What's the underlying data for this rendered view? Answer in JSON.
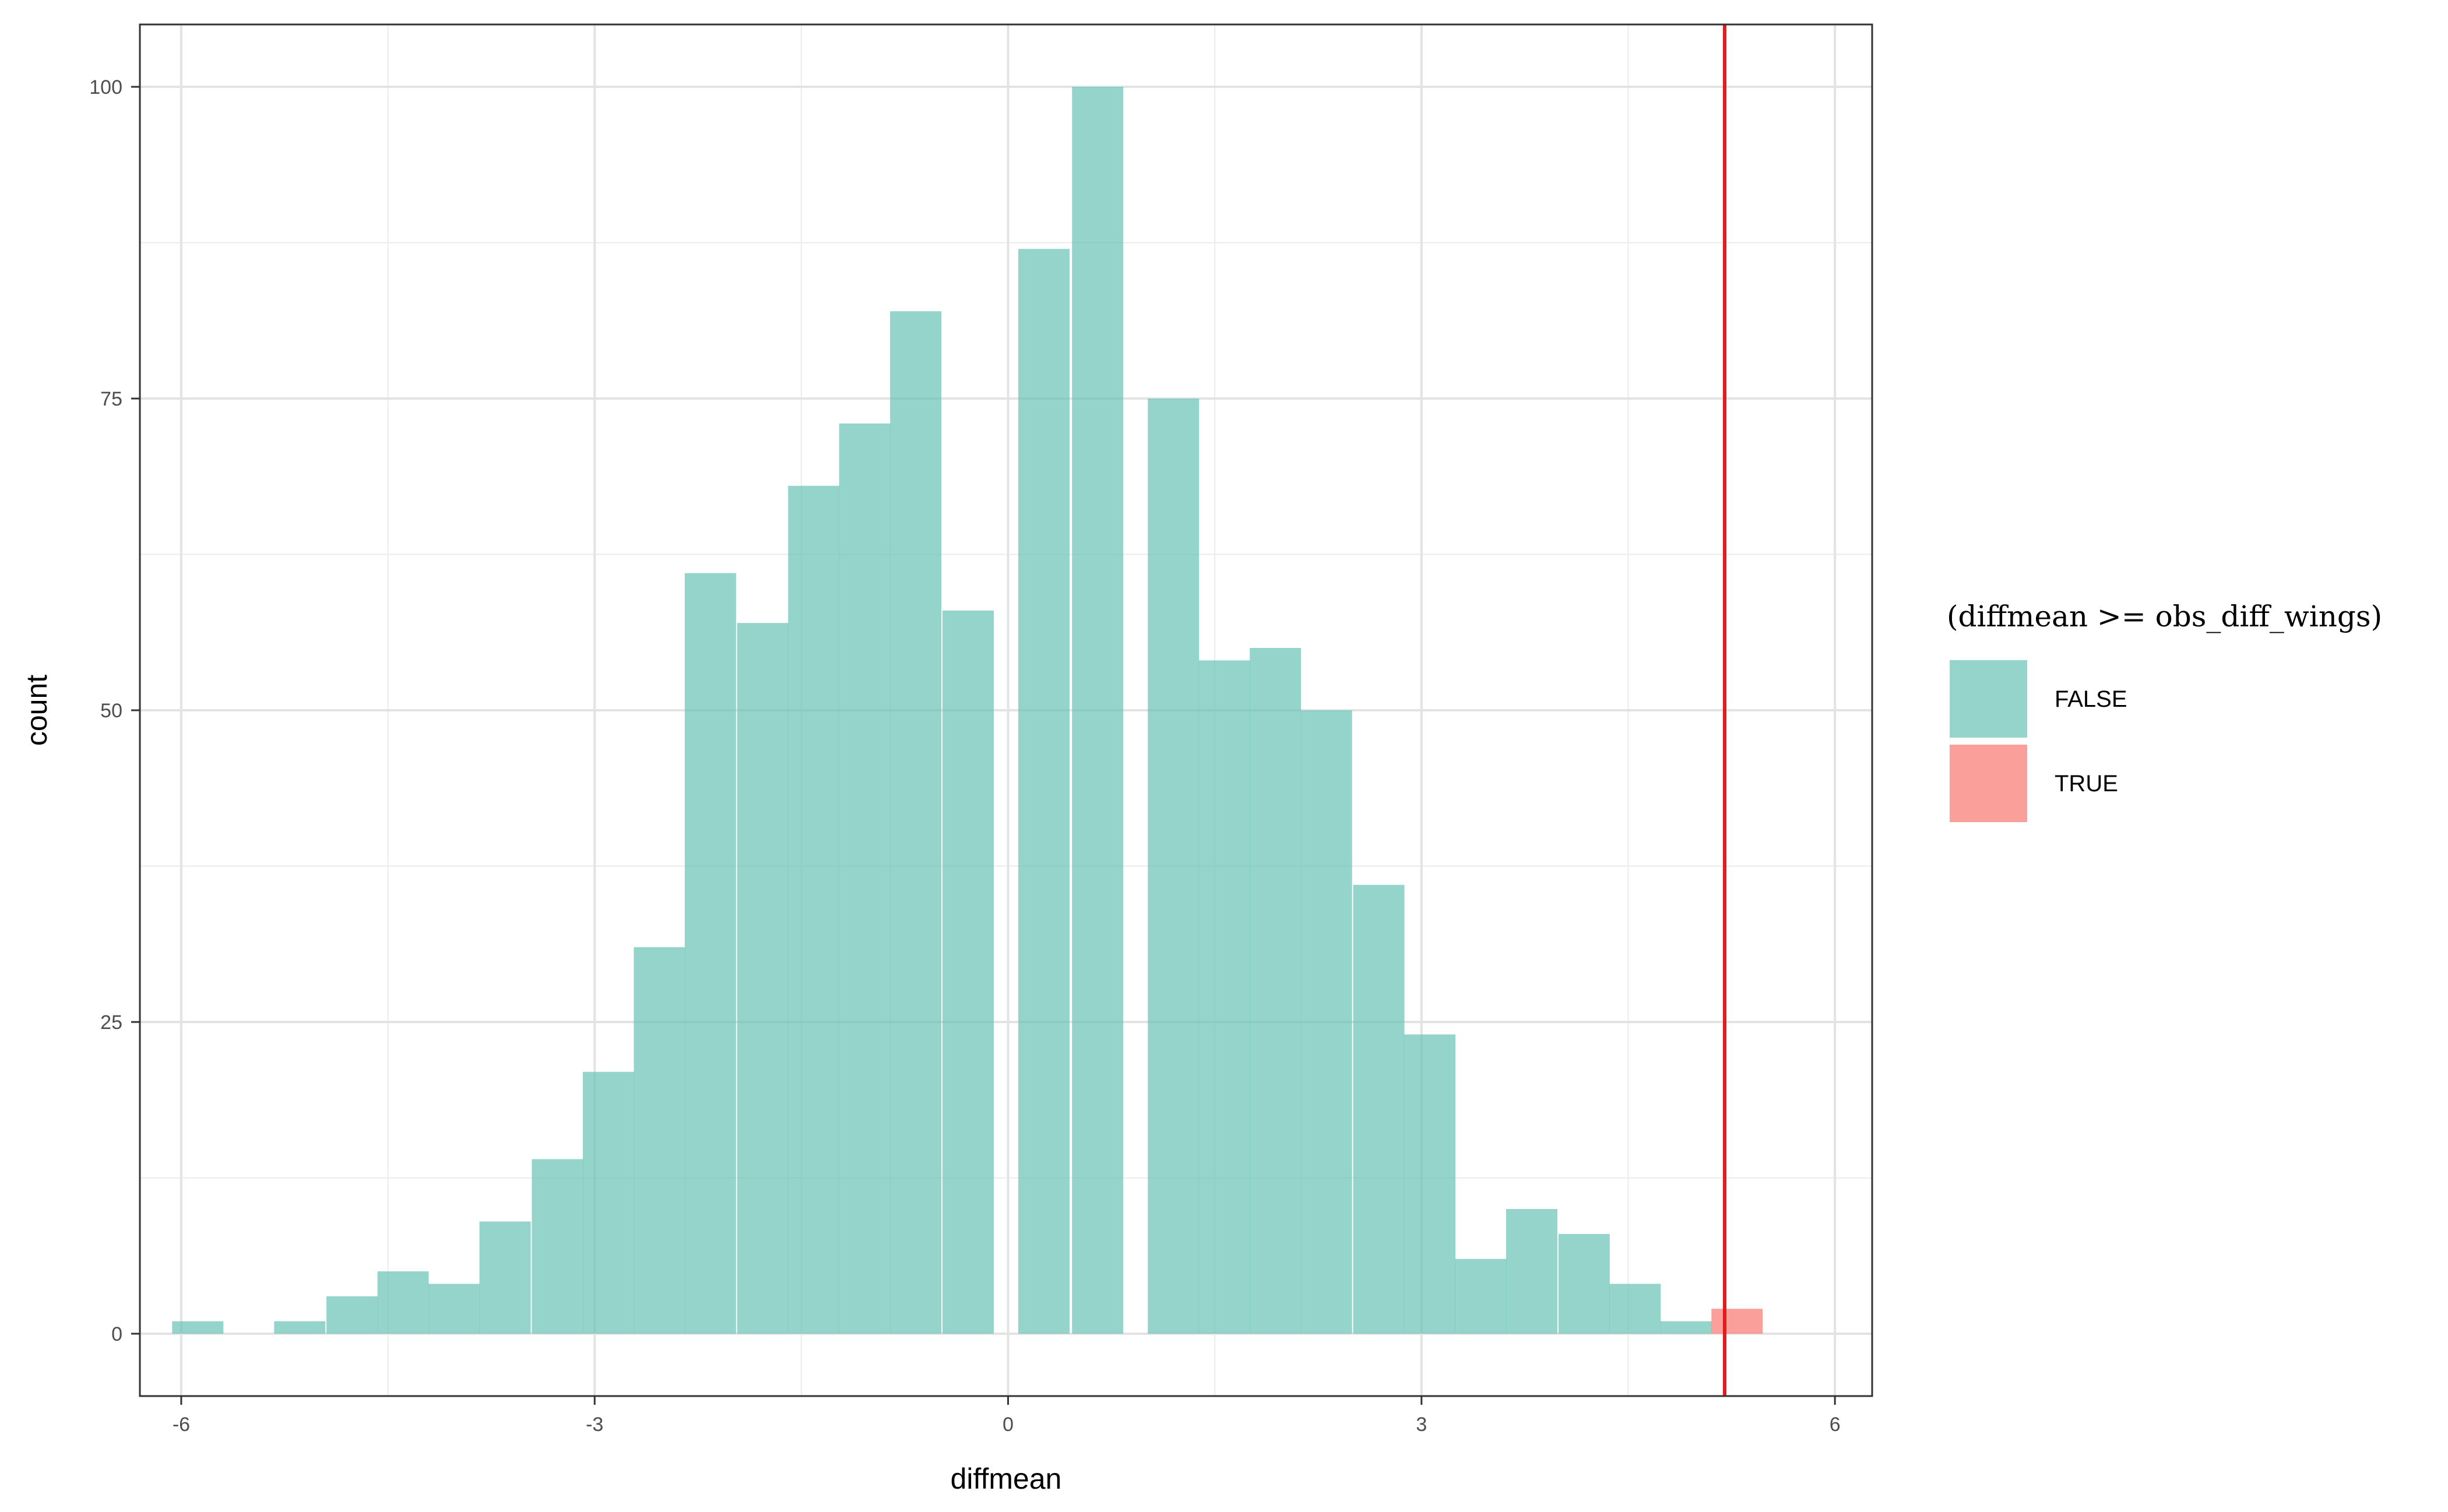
{
  "chart_data": {
    "type": "bar",
    "subtype": "histogram",
    "bin_width": 0.372,
    "xlabel": "diffmean",
    "ylabel": "count",
    "xlim": [
      -6.3,
      6.27
    ],
    "ylim": [
      -5,
      105
    ],
    "x_ticks": [
      -6,
      -3,
      0,
      3,
      6
    ],
    "x_tick_labels": [
      "-6",
      "-3",
      "0",
      "3",
      "6"
    ],
    "y_ticks": [
      0,
      25,
      50,
      75,
      100
    ],
    "y_tick_labels": [
      "0",
      "25",
      "50",
      "75",
      "100"
    ],
    "grid": true,
    "legend": {
      "title": "(diffmean >= obs_diff_wings)",
      "position": "right",
      "entries": [
        {
          "label": "FALSE",
          "color": "#66C2B5"
        },
        {
          "label": "TRUE",
          "color": "#F8766D"
        }
      ]
    },
    "series": [
      {
        "name": "FALSE",
        "color": "#66C2B5",
        "opacity": 0.7,
        "bins": [
          {
            "x": -5.88,
            "count": 1
          },
          {
            "x": -5.51,
            "count": 0
          },
          {
            "x": -5.14,
            "count": 1
          },
          {
            "x": -4.76,
            "count": 3
          },
          {
            "x": -4.39,
            "count": 5
          },
          {
            "x": -4.02,
            "count": 4
          },
          {
            "x": -3.65,
            "count": 9
          },
          {
            "x": -3.27,
            "count": 14
          },
          {
            "x": -2.9,
            "count": 21
          },
          {
            "x": -2.53,
            "count": 31
          },
          {
            "x": -2.16,
            "count": 61
          },
          {
            "x": -1.78,
            "count": 57
          },
          {
            "x": -1.41,
            "count": 68
          },
          {
            "x": -1.04,
            "count": 73
          },
          {
            "x": -0.67,
            "count": 82
          },
          {
            "x": -0.29,
            "count": 58
          },
          {
            "x": 0.08,
            "count": 0
          },
          {
            "x": 0.45,
            "count": 0
          },
          {
            "x": 0.82,
            "count": 0
          },
          {
            "x": 1.2,
            "count": 75
          },
          {
            "x": 1.57,
            "count": 54
          },
          {
            "x": 1.94,
            "count": 55
          },
          {
            "x": 2.31,
            "count": 50
          },
          {
            "x": 2.69,
            "count": 36
          },
          {
            "x": 3.06,
            "count": 24
          },
          {
            "x": 3.43,
            "count": 6
          },
          {
            "x": 3.8,
            "count": 10
          },
          {
            "x": 4.18,
            "count": 8
          },
          {
            "x": 4.55,
            "count": 4
          },
          {
            "x": 4.92,
            "count": 1
          }
        ]
      },
      {
        "name": "TRUE",
        "color": "#F8766D",
        "opacity": 0.7,
        "bins": [
          {
            "x": 5.29,
            "count": 2
          }
        ]
      }
    ],
    "extra_bins_false": [
      {
        "x": 0.26,
        "count": 87
      },
      {
        "x": 0.65,
        "count": 100
      }
    ],
    "reference_line": {
      "type": "vline",
      "x": 5.2,
      "color": "#E41A1C"
    }
  }
}
